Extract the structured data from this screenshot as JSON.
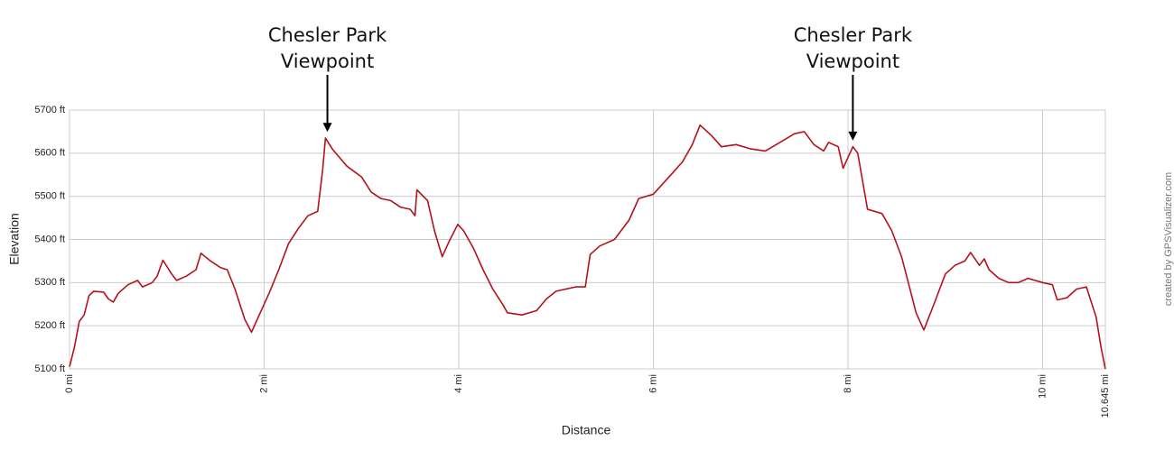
{
  "chart_data": {
    "type": "line",
    "xlabel": "Distance",
    "ylabel": "Elevation",
    "credit": "created by GPSVisualizer.com",
    "color": "#b3121b",
    "grid": true,
    "xlim": [
      0,
      10.645
    ],
    "ylim": [
      5100,
      5700
    ],
    "xticks": [
      {
        "value": 0,
        "label": "0 mi"
      },
      {
        "value": 2,
        "label": "2 mi"
      },
      {
        "value": 4,
        "label": "4 mi"
      },
      {
        "value": 6,
        "label": "6 mi"
      },
      {
        "value": 8,
        "label": "8 mi"
      },
      {
        "value": 10,
        "label": "10 mi"
      },
      {
        "value": 10.645,
        "label": "10.645 mi"
      }
    ],
    "yticks": [
      {
        "value": 5100,
        "label": "5100 ft"
      },
      {
        "value": 5200,
        "label": "5200 ft"
      },
      {
        "value": 5300,
        "label": "5300 ft"
      },
      {
        "value": 5400,
        "label": "5400 ft"
      },
      {
        "value": 5500,
        "label": "5500 ft"
      },
      {
        "value": 5600,
        "label": "5600 ft"
      },
      {
        "value": 5700,
        "label": "5700 ft"
      }
    ],
    "annotations": [
      {
        "lines": [
          "Chesler Park",
          "Viewpoint"
        ],
        "x": 2.65,
        "y": 5645
      },
      {
        "lines": [
          "Chesler Park",
          "Viewpoint"
        ],
        "x": 8.05,
        "y": 5625
      }
    ],
    "x": [
      0,
      0.05,
      0.1,
      0.15,
      0.2,
      0.25,
      0.35,
      0.4,
      0.45,
      0.5,
      0.6,
      0.7,
      0.75,
      0.85,
      0.9,
      0.96,
      1.05,
      1.1,
      1.2,
      1.3,
      1.35,
      1.45,
      1.55,
      1.62,
      1.7,
      1.8,
      1.87,
      1.95,
      2.05,
      2.15,
      2.25,
      2.35,
      2.45,
      2.55,
      2.6,
      2.63,
      2.7,
      2.85,
      3.0,
      3.1,
      3.2,
      3.3,
      3.4,
      3.5,
      3.55,
      3.57,
      3.68,
      3.75,
      3.83,
      3.9,
      3.99,
      4.05,
      4.15,
      4.25,
      4.35,
      4.45,
      4.5,
      4.65,
      4.8,
      4.9,
      5.0,
      5.2,
      5.3,
      5.35,
      5.45,
      5.6,
      5.75,
      5.85,
      6.0,
      6.1,
      6.2,
      6.3,
      6.4,
      6.48,
      6.6,
      6.7,
      6.85,
      7.0,
      7.15,
      7.3,
      7.45,
      7.55,
      7.65,
      7.75,
      7.8,
      7.9,
      7.95,
      8.0,
      8.05,
      8.1,
      8.2,
      8.35,
      8.45,
      8.55,
      8.62,
      8.7,
      8.78,
      8.9,
      9.0,
      9.1,
      9.2,
      9.26,
      9.35,
      9.4,
      9.45,
      9.55,
      9.65,
      9.75,
      9.85,
      10.0,
      10.1,
      10.15,
      10.25,
      10.35,
      10.45,
      10.5,
      10.55,
      10.6,
      10.645
    ],
    "values": [
      5105,
      5150,
      5210,
      5225,
      5270,
      5280,
      5278,
      5262,
      5255,
      5275,
      5295,
      5305,
      5290,
      5300,
      5315,
      5352,
      5320,
      5305,
      5315,
      5330,
      5368,
      5350,
      5335,
      5330,
      5285,
      5215,
      5185,
      5225,
      5275,
      5330,
      5390,
      5425,
      5455,
      5465,
      5560,
      5635,
      5610,
      5570,
      5545,
      5510,
      5495,
      5490,
      5475,
      5470,
      5455,
      5515,
      5490,
      5420,
      5360,
      5395,
      5435,
      5420,
      5380,
      5330,
      5285,
      5250,
      5230,
      5225,
      5235,
      5262,
      5280,
      5290,
      5290,
      5365,
      5385,
      5400,
      5445,
      5495,
      5505,
      5530,
      5555,
      5580,
      5620,
      5665,
      5640,
      5615,
      5620,
      5610,
      5605,
      5625,
      5645,
      5650,
      5620,
      5605,
      5625,
      5615,
      5565,
      5590,
      5615,
      5600,
      5470,
      5460,
      5420,
      5360,
      5300,
      5230,
      5190,
      5260,
      5320,
      5340,
      5350,
      5370,
      5340,
      5355,
      5330,
      5310,
      5300,
      5300,
      5310,
      5300,
      5295,
      5260,
      5265,
      5285,
      5290,
      5255,
      5220,
      5150,
      5100
    ]
  }
}
